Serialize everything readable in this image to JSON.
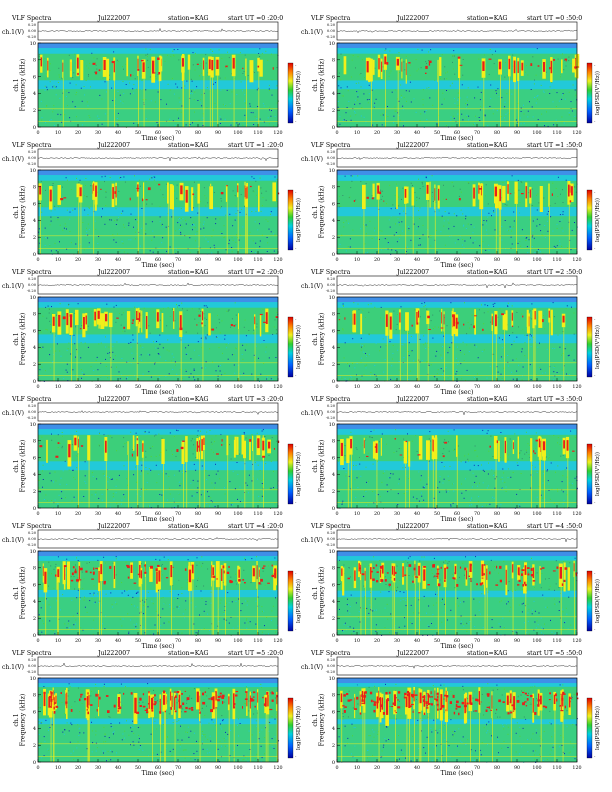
{
  "page": {
    "header_left": "VLF Spectra",
    "date": "Jul222007",
    "station": "station=KAG",
    "start_label": "start  UT"
  },
  "labels": {
    "ch1_axis": "ch.1(V)",
    "spec_axis_line1": "ch.1",
    "spec_axis_line2": "Frequency (kHz)",
    "time_axis": "Time (sec)",
    "colorbar": "log(PSD(V²/Hz))"
  },
  "time_ticks": [
    "0",
    "10",
    "20",
    "30",
    "40",
    "50",
    "60",
    "70",
    "80",
    "90",
    "100",
    "110",
    "120"
  ],
  "freq_ticks": [
    "0",
    "2",
    "4",
    "6",
    "8",
    "10"
  ],
  "amp_ticks": [
    "0.20",
    "0.00",
    "-0.20"
  ],
  "colorbar_ticks": [
    "-",
    "-"
  ],
  "colors": {
    "background": "#1aa7ec",
    "low": "#22c9d9",
    "mid": "#4fd43a",
    "high": "#f2ef1a",
    "peak": "#e8201a",
    "noise_dark": "#0b2db5",
    "upper_band": "#3f8fe8"
  },
  "chart_data": [
    {
      "type": "heatmap",
      "start_ut": "=0 :20:0",
      "intensity": 0.3,
      "xlim": [
        0,
        120
      ],
      "ylim": [
        0,
        10
      ],
      "xlabel": "Time (sec)",
      "ylabel": "Frequency (kHz)"
    },
    {
      "type": "heatmap",
      "start_ut": "=0 :50:0",
      "intensity": 0.32,
      "xlim": [
        0,
        120
      ],
      "ylim": [
        0,
        10
      ],
      "xlabel": "Time (sec)",
      "ylabel": "Frequency (kHz)"
    },
    {
      "type": "heatmap",
      "start_ut": "=1 :20:0",
      "intensity": 0.3,
      "xlim": [
        0,
        120
      ],
      "ylim": [
        0,
        10
      ],
      "xlabel": "Time (sec)",
      "ylabel": "Frequency (kHz)"
    },
    {
      "type": "heatmap",
      "start_ut": "=1 :50:0",
      "intensity": 0.26,
      "xlim": [
        0,
        120
      ],
      "ylim": [
        0,
        10
      ],
      "xlabel": "Time (sec)",
      "ylabel": "Frequency (kHz)"
    },
    {
      "type": "heatmap",
      "start_ut": "=2 :20:0",
      "intensity": 0.32,
      "xlim": [
        0,
        120
      ],
      "ylim": [
        0,
        10
      ],
      "xlabel": "Time (sec)",
      "ylabel": "Frequency (kHz)"
    },
    {
      "type": "heatmap",
      "start_ut": "=2 :50:0",
      "intensity": 0.3,
      "xlim": [
        0,
        120
      ],
      "ylim": [
        0,
        10
      ],
      "xlabel": "Time (sec)",
      "ylabel": "Frequency (kHz)"
    },
    {
      "type": "heatmap",
      "start_ut": "=3 :20:0",
      "intensity": 0.3,
      "xlim": [
        0,
        120
      ],
      "ylim": [
        0,
        10
      ],
      "xlabel": "Time (sec)",
      "ylabel": "Frequency (kHz)"
    },
    {
      "type": "heatmap",
      "start_ut": "=3 :50:0",
      "intensity": 0.28,
      "xlim": [
        0,
        120
      ],
      "ylim": [
        0,
        10
      ],
      "xlabel": "Time (sec)",
      "ylabel": "Frequency (kHz)"
    },
    {
      "type": "heatmap",
      "start_ut": "=4 :20:0",
      "intensity": 0.55,
      "xlim": [
        0,
        120
      ],
      "ylim": [
        0,
        10
      ],
      "xlabel": "Time (sec)",
      "ylabel": "Frequency (kHz)"
    },
    {
      "type": "heatmap",
      "start_ut": "=4 :50:0",
      "intensity": 0.65,
      "xlim": [
        0,
        120
      ],
      "ylim": [
        0,
        10
      ],
      "xlabel": "Time (sec)",
      "ylabel": "Frequency (kHz)"
    },
    {
      "type": "heatmap",
      "start_ut": "=5 :20:0",
      "intensity": 0.78,
      "xlim": [
        0,
        120
      ],
      "ylim": [
        0,
        10
      ],
      "xlabel": "Time (sec)",
      "ylabel": "Frequency (kHz)"
    },
    {
      "type": "heatmap",
      "start_ut": "=5 :50:0",
      "intensity": 0.88,
      "xlim": [
        0,
        120
      ],
      "ylim": [
        0,
        10
      ],
      "xlabel": "Time (sec)",
      "ylabel": "Frequency (kHz)"
    }
  ]
}
